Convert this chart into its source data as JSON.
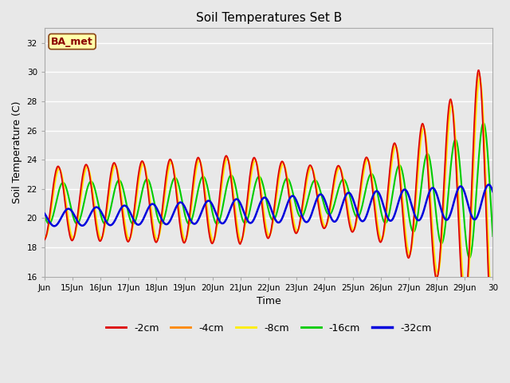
{
  "title": "Soil Temperatures Set B",
  "xlabel": "Time",
  "ylabel": "Soil Temperature (C)",
  "ylim": [
    16,
    33
  ],
  "yticks": [
    16,
    18,
    20,
    22,
    24,
    26,
    28,
    30,
    32
  ],
  "annotation": "BA_met",
  "legend_labels": [
    "-2cm",
    "-4cm",
    "-8cm",
    "-16cm",
    "-32cm"
  ],
  "line_colors": [
    "#dd0000",
    "#ff8800",
    "#ffee00",
    "#00cc00",
    "#0000dd"
  ],
  "line_widths": [
    1.2,
    1.2,
    1.2,
    1.5,
    1.8
  ],
  "bg_color": "#e8e8e8",
  "grid_color": "#ffffff",
  "xtick_labels": [
    "Jun",
    "15Jun",
    "16Jun",
    "17Jun",
    "18Jun",
    "19Jun",
    "20Jun",
    "21Jun",
    "22Jun",
    "23Jun",
    "24Jun",
    "25Jun",
    "26Jun",
    "27Jun",
    "28Jun",
    "29Jun",
    "30"
  ],
  "figsize": [
    6.4,
    4.8
  ],
  "dpi": 100
}
